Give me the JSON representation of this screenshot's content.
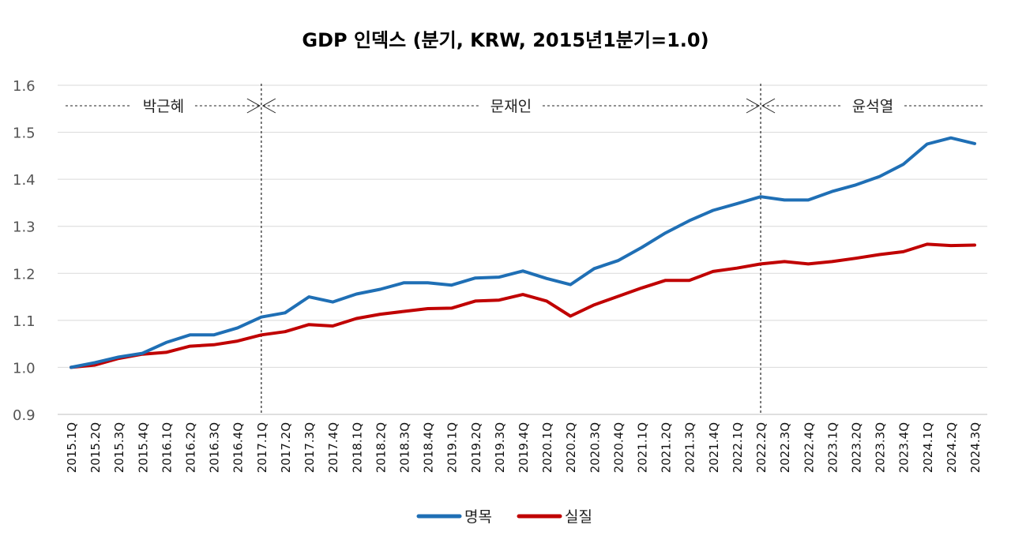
{
  "chart_data": {
    "type": "line",
    "title": "GDP 인덱스 (분기, KRW, 2015년1분기=1.0)",
    "xlabel": "",
    "ylabel": "",
    "ylim": [
      0.9,
      1.6
    ],
    "yticks": [
      "0.9",
      "1.0",
      "1.1",
      "1.2",
      "1.3",
      "1.4",
      "1.5",
      "1.6"
    ],
    "grid": true,
    "legend_position": "bottom",
    "categories": [
      "2015.1Q",
      "2015.2Q",
      "2015.3Q",
      "2015.4Q",
      "2016.1Q",
      "2016.2Q",
      "2016.3Q",
      "2016.4Q",
      "2017.1Q",
      "2017.2Q",
      "2017.3Q",
      "2017.4Q",
      "2018.1Q",
      "2018.2Q",
      "2018.3Q",
      "2018.4Q",
      "2019.1Q",
      "2019.2Q",
      "2019.3Q",
      "2019.4Q",
      "2020.1Q",
      "2020.2Q",
      "2020.3Q",
      "2020.4Q",
      "2021.1Q",
      "2021.2Q",
      "2021.3Q",
      "2021.4Q",
      "2022.1Q",
      "2022.2Q",
      "2022.3Q",
      "2022.4Q",
      "2023.1Q",
      "2023.2Q",
      "2023.3Q",
      "2023.4Q",
      "2024.1Q",
      "2024.2Q",
      "2024.3Q"
    ],
    "series": [
      {
        "name": "명목",
        "color": "#1f6fb5",
        "values": [
          1.0,
          1.01,
          1.022,
          1.03,
          1.053,
          1.069,
          1.069,
          1.084,
          1.107,
          1.116,
          1.15,
          1.139,
          1.156,
          1.166,
          1.18,
          1.18,
          1.175,
          1.19,
          1.192,
          1.205,
          1.189,
          1.176,
          1.21,
          1.227,
          1.255,
          1.286,
          1.312,
          1.334,
          1.348,
          1.363,
          1.356,
          1.356,
          1.374,
          1.388,
          1.406,
          1.432,
          1.475,
          1.488,
          1.476
        ]
      },
      {
        "name": "실질",
        "color": "#c00000",
        "values": [
          1.0,
          1.005,
          1.019,
          1.028,
          1.032,
          1.045,
          1.048,
          1.056,
          1.069,
          1.076,
          1.091,
          1.088,
          1.104,
          1.113,
          1.119,
          1.125,
          1.126,
          1.141,
          1.143,
          1.155,
          1.141,
          1.109,
          1.133,
          1.151,
          1.169,
          1.185,
          1.185,
          1.204,
          1.211,
          1.22,
          1.225,
          1.22,
          1.225,
          1.232,
          1.24,
          1.246,
          1.262,
          1.259,
          1.26
        ]
      }
    ],
    "annotations": {
      "dividers": [
        "2017.1Q",
        "2022.2Q"
      ],
      "periods": [
        {
          "label": "박근혜",
          "start": "2015.1Q",
          "end": "2017.1Q"
        },
        {
          "label": "문재인",
          "start": "2017.1Q",
          "end": "2022.2Q"
        },
        {
          "label": "윤석열",
          "start": "2022.2Q",
          "end": "2024.3Q"
        }
      ]
    }
  }
}
